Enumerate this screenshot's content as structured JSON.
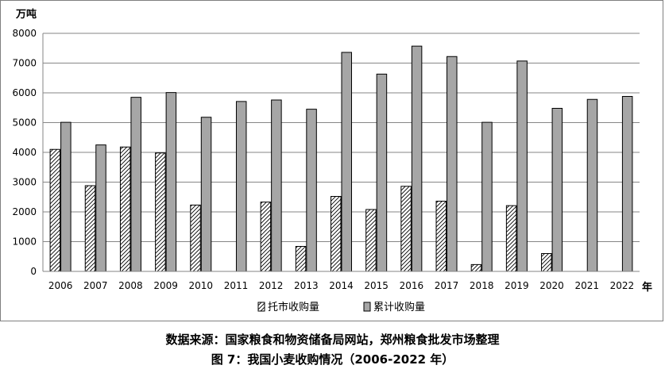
{
  "chart_data": {
    "type": "bar",
    "y_unit": "万吨",
    "x_unit": "年",
    "categories": [
      "2006",
      "2007",
      "2008",
      "2009",
      "2010",
      "2011",
      "2012",
      "2013",
      "2014",
      "2015",
      "2016",
      "2017",
      "2018",
      "2019",
      "2020",
      "2021",
      "2022"
    ],
    "series": [
      {
        "name": "托市收购量",
        "values": [
          4100,
          2880,
          4180,
          3980,
          2230,
          0,
          2330,
          840,
          2520,
          2080,
          2860,
          2360,
          230,
          2210,
          600,
          0,
          0
        ],
        "color": "#ffffff",
        "pattern": "diagonal-hatch"
      },
      {
        "name": "累计收购量",
        "values": [
          5010,
          4250,
          5850,
          6010,
          5180,
          5710,
          5760,
          5450,
          7360,
          6630,
          7570,
          7220,
          5010,
          7070,
          5480,
          5780,
          5880
        ],
        "color": "#a6a6a6"
      }
    ],
    "ylim": [
      0,
      8000
    ],
    "yticks": [
      "0",
      "1000",
      "2000",
      "3000",
      "4000",
      "5000",
      "6000",
      "7000",
      "8000"
    ],
    "grid": true,
    "legend_position": "bottom"
  },
  "captions": {
    "source": "数据来源：国家粮食和物资储备局网站，郑州粮食批发市场整理",
    "figure": "图 7：我国小麦收购情况（2006-2022 年）"
  }
}
